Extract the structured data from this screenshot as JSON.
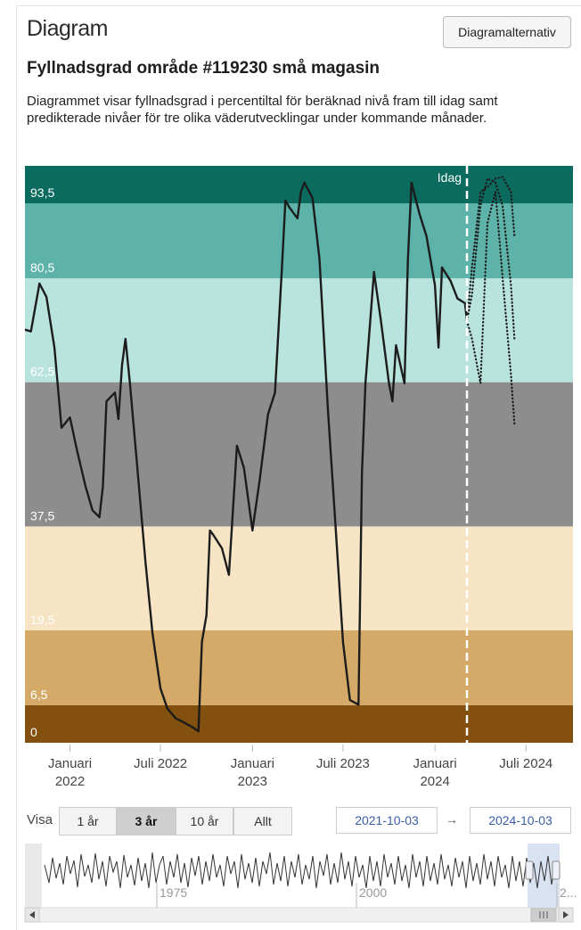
{
  "header": {
    "title": "Diagram",
    "options_button": "Diagramalternativ"
  },
  "chart_data": {
    "type": "line",
    "title": "Fyllnadsgrad område #119230 små magasin",
    "subtitle": "Diagrammet visar fyllnadsgrad i percentiltal för beräknad nivå fram till idag samt predikterade nivåer för tre olika väderutvecklingar under kommande månader.",
    "xlim": [
      "2021-10-03",
      "2024-10-03"
    ],
    "xticks": [
      {
        "value": "2022-01-01",
        "label": "Januari 2022"
      },
      {
        "value": "2022-07-01",
        "label": "Juli 2022"
      },
      {
        "value": "2023-01-01",
        "label": "Januari 2023"
      },
      {
        "value": "2023-07-01",
        "label": "Juli 2023"
      },
      {
        "value": "2024-01-01",
        "label": "Januari 2024"
      },
      {
        "value": "2024-07-01",
        "label": "Juli 2024"
      }
    ],
    "ylim": [
      0,
      100
    ],
    "yticks": [
      0,
      {
        "value": 6.5,
        "label": "6,5"
      },
      {
        "value": 19.5,
        "label": "19,5"
      },
      {
        "value": 37.5,
        "label": "37,5"
      },
      {
        "value": 62.5,
        "label": "62,5"
      },
      {
        "value": 80.5,
        "label": "80,5"
      },
      {
        "value": 93.5,
        "label": "93,5"
      }
    ],
    "band_colors": [
      "#83500f",
      "#d5aa69",
      "#f6e4c5",
      "#8e8d8e",
      "#b9e4dd",
      "#5db3a9",
      "#0b6b5f"
    ],
    "series": [
      {
        "color": "#1c1c1c",
        "style": "solid",
        "x": [
          "2021-10-03",
          "2021-10-15",
          "2021-11-01",
          "2021-11-15",
          "2021-12-01",
          "2021-12-15",
          "2022-01-01",
          "2022-01-15",
          "2022-02-01",
          "2022-02-15",
          "2022-03-01",
          "2022-03-08",
          "2022-03-15",
          "2022-04-01",
          "2022-04-08",
          "2022-04-15",
          "2022-04-22",
          "2022-05-01",
          "2022-05-15",
          "2022-06-01",
          "2022-06-15",
          "2022-07-01",
          "2022-07-15",
          "2022-08-01",
          "2022-08-15",
          "2022-09-01",
          "2022-09-15",
          "2022-09-22",
          "2022-10-01",
          "2022-10-08",
          "2022-10-15",
          "2022-11-01",
          "2022-11-15",
          "2022-12-01",
          "2022-12-15",
          "2023-01-01",
          "2023-01-15",
          "2023-02-01",
          "2023-02-15",
          "2023-03-01",
          "2023-03-08",
          "2023-03-15",
          "2023-04-01",
          "2023-04-08",
          "2023-04-15",
          "2023-05-01",
          "2023-05-15",
          "2023-06-01",
          "2023-06-15",
          "2023-07-01",
          "2023-07-15",
          "2023-08-01",
          "2023-08-08",
          "2023-08-15",
          "2023-09-01",
          "2023-09-15",
          "2023-10-01",
          "2023-10-08",
          "2023-10-15",
          "2023-11-01",
          "2023-11-08",
          "2023-11-15",
          "2023-12-01",
          "2023-12-15",
          "2024-01-01",
          "2024-01-08",
          "2024-01-15",
          "2024-02-01",
          "2024-02-15",
          "2024-03-01",
          "2024-03-05"
        ],
        "values": [
          71.6,
          71.3,
          79.6,
          77.3,
          68.5,
          54.6,
          56.4,
          50.7,
          44.5,
          40.3,
          39.1,
          44.5,
          59.2,
          60.7,
          56.1,
          65.4,
          70.0,
          62.3,
          48.4,
          31.4,
          19.0,
          9.4,
          5.9,
          4.2,
          3.6,
          2.8,
          2.0,
          17.5,
          22.1,
          36.8,
          36.0,
          33.7,
          29.1,
          51.5,
          47.6,
          36.8,
          45.3,
          56.9,
          60.7,
          82.4,
          94.0,
          92.9,
          90.9,
          95.5,
          97.1,
          94.4,
          83.9,
          57.7,
          39.1,
          17.5,
          7.4,
          6.6,
          46.8,
          62.3,
          81.6,
          73.1,
          62.3,
          59.2,
          68.9,
          62.3,
          83.9,
          97.1,
          91.7,
          87.8,
          79.3,
          68.5,
          82.4,
          80.1,
          77.0,
          76.2,
          73.1
        ]
      },
      {
        "color": "#1c1c1c",
        "style": "dotted",
        "x": [
          "2024-03-05",
          "2024-03-15",
          "2024-04-01",
          "2024-04-15",
          "2024-05-01",
          "2024-05-15",
          "2024-06-01",
          "2024-06-08"
        ],
        "values": [
          73.1,
          70.0,
          62.3,
          90.1,
          95.5,
          80.8,
          63.8,
          55.3
        ]
      },
      {
        "color": "#1c1c1c",
        "style": "dotted",
        "x": [
          "2024-03-05",
          "2024-03-15",
          "2024-04-01",
          "2024-04-15",
          "2024-05-01",
          "2024-05-15",
          "2024-06-01",
          "2024-06-08"
        ],
        "values": [
          73.1,
          77.7,
          93.2,
          97.8,
          97.1,
          93.2,
          79.3,
          70.0
        ]
      },
      {
        "color": "#1c1c1c",
        "style": "dotted",
        "x": [
          "2024-03-05",
          "2024-03-15",
          "2024-04-01",
          "2024-04-15",
          "2024-05-01",
          "2024-05-15",
          "2024-06-01",
          "2024-06-08"
        ],
        "values": [
          73.1,
          82.4,
          95.5,
          96.3,
          97.8,
          98.1,
          95.5,
          87.8
        ]
      }
    ],
    "annotations": [
      {
        "text": "Idag",
        "x": "2024-03-05"
      }
    ]
  },
  "range_selector": {
    "label": "Visa",
    "buttons": [
      "1 år",
      "3 år",
      "10 år",
      "Allt"
    ],
    "active": 1,
    "separator": "→"
  },
  "navigator": {
    "labels": [
      "1975",
      "2000",
      "2..."
    ]
  }
}
